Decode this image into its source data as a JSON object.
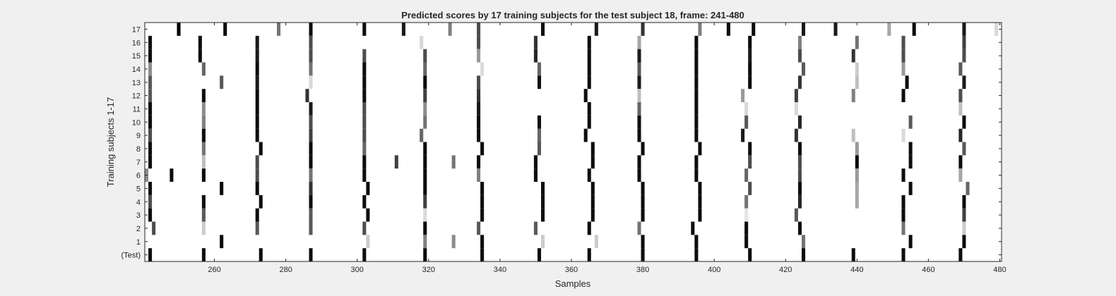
{
  "chart_data": {
    "type": "heatmap",
    "title": "Predicted scores by 17 training subjects for the test subject 18, frame: 241-480",
    "xlabel": "Samples",
    "ylabel": "Training subjects 1-17",
    "xlim": [
      240.5,
      480.5
    ],
    "xticks": [
      260,
      280,
      300,
      320,
      340,
      360,
      380,
      400,
      420,
      440,
      460,
      480
    ],
    "rows": [
      "17",
      "16",
      "15",
      "14",
      "13",
      "12",
      "11",
      "10",
      "9",
      "8",
      "7",
      "6",
      "5",
      "4",
      "3",
      "2",
      "1",
      "(Test)"
    ],
    "colormap": "gray (1 = white, 0 = black)",
    "background_value": 1,
    "cells": [
      {
        "row": "17",
        "marks": [
          [
            250,
            0
          ],
          [
            263,
            0.05
          ],
          [
            278,
            0.45
          ],
          [
            287,
            0.05
          ],
          [
            302,
            0.05
          ],
          [
            313,
            0.1
          ],
          [
            326,
            0.5
          ],
          [
            334,
            0.3
          ],
          [
            352,
            0.05
          ],
          [
            367,
            0.1
          ],
          [
            380,
            0.2
          ],
          [
            396,
            0.5
          ],
          [
            404,
            0.05
          ],
          [
            411,
            0.05
          ],
          [
            425,
            0.1
          ],
          [
            434,
            0.1
          ],
          [
            449,
            0.65
          ],
          [
            456,
            0.05
          ],
          [
            470,
            0.1
          ],
          [
            479,
            0.85
          ]
        ]
      },
      {
        "row": "16",
        "marks": [
          [
            242,
            0.05
          ],
          [
            256,
            0.05
          ],
          [
            272,
            0.1
          ],
          [
            287,
            0.3
          ],
          [
            318,
            0.85
          ],
          [
            334,
            0.3
          ],
          [
            350,
            0.2
          ],
          [
            365,
            0.05
          ],
          [
            379,
            0.65
          ],
          [
            395,
            0.05
          ],
          [
            410,
            0.05
          ],
          [
            424,
            0.5
          ],
          [
            440,
            0.45
          ],
          [
            453,
            0.3
          ],
          [
            470,
            0.25
          ]
        ]
      },
      {
        "row": "15",
        "marks": [
          [
            242,
            0.05
          ],
          [
            256,
            0.05
          ],
          [
            272,
            0.1
          ],
          [
            287,
            0.3
          ],
          [
            302,
            0.3
          ],
          [
            319,
            0.3
          ],
          [
            334,
            0.6
          ],
          [
            350,
            0.15
          ],
          [
            365,
            0.05
          ],
          [
            379,
            0.1
          ],
          [
            395,
            0.05
          ],
          [
            410,
            0.1
          ],
          [
            424,
            0.3
          ],
          [
            439,
            0.2
          ],
          [
            453,
            0.3
          ],
          [
            470,
            0.3
          ]
        ]
      },
      {
        "row": "14",
        "marks": [
          [
            242,
            0.55
          ],
          [
            257,
            0.4
          ],
          [
            272,
            0.05
          ],
          [
            287,
            0.45
          ],
          [
            302,
            0.05
          ],
          [
            319,
            0.4
          ],
          [
            335,
            0.85
          ],
          [
            351,
            0.4
          ],
          [
            365,
            0.05
          ],
          [
            379,
            0.35
          ],
          [
            395,
            0.05
          ],
          [
            410,
            0.05
          ],
          [
            425,
            0.35
          ],
          [
            440,
            0.8
          ],
          [
            453,
            0.6
          ],
          [
            469,
            0.35
          ]
        ]
      },
      {
        "row": "13",
        "marks": [
          [
            242,
            0.35
          ],
          [
            262,
            0.35
          ],
          [
            272,
            0.1
          ],
          [
            287,
            0.85
          ],
          [
            302,
            0.05
          ],
          [
            319,
            0.05
          ],
          [
            334,
            0.3
          ],
          [
            351,
            0.05
          ],
          [
            365,
            0.05
          ],
          [
            379,
            0.1
          ],
          [
            395,
            0.05
          ],
          [
            410,
            0.05
          ],
          [
            424,
            0.2
          ],
          [
            440,
            0.75
          ],
          [
            454,
            0.05
          ],
          [
            470,
            0.1
          ]
        ]
      },
      {
        "row": "12",
        "marks": [
          [
            242,
            0.35
          ],
          [
            257,
            0.05
          ],
          [
            272,
            0.05
          ],
          [
            286,
            0.2
          ],
          [
            302,
            0.05
          ],
          [
            319,
            0.25
          ],
          [
            334,
            0.2
          ],
          [
            364,
            0.05
          ],
          [
            379,
            0.75
          ],
          [
            395,
            0.05
          ],
          [
            408,
            0.6
          ],
          [
            423,
            0.25
          ],
          [
            439,
            0.5
          ],
          [
            453,
            0.05
          ],
          [
            469,
            0.3
          ]
        ]
      },
      {
        "row": "11",
        "marks": [
          [
            242,
            0.05
          ],
          [
            257,
            0.55
          ],
          [
            272,
            0.05
          ],
          [
            287,
            0.1
          ],
          [
            302,
            0.3
          ],
          [
            319,
            0.55
          ],
          [
            334,
            0.1
          ],
          [
            365,
            0.05
          ],
          [
            379,
            0.4
          ],
          [
            395,
            0.05
          ],
          [
            409,
            0.85
          ],
          [
            423,
            0.85
          ],
          [
            469,
            0.75
          ]
        ]
      },
      {
        "row": "10",
        "marks": [
          [
            242,
            0.05
          ],
          [
            257,
            0.5
          ],
          [
            272,
            0.05
          ],
          [
            287,
            0.3
          ],
          [
            302,
            0.3
          ],
          [
            319,
            0.45
          ],
          [
            334,
            0.05
          ],
          [
            351,
            0.05
          ],
          [
            365,
            0.05
          ],
          [
            379,
            0.05
          ],
          [
            395,
            0.05
          ],
          [
            409,
            0.35
          ],
          [
            424,
            0.15
          ],
          [
            455,
            0.35
          ],
          [
            470,
            0.05
          ]
        ]
      },
      {
        "row": "9",
        "marks": [
          [
            242,
            0.3
          ],
          [
            257,
            0.05
          ],
          [
            272,
            0.05
          ],
          [
            287,
            0.25
          ],
          [
            302,
            0.3
          ],
          [
            318,
            0.4
          ],
          [
            334,
            0.05
          ],
          [
            351,
            0.4
          ],
          [
            364,
            0.05
          ],
          [
            379,
            0.05
          ],
          [
            395,
            0.05
          ],
          [
            408,
            0.1
          ],
          [
            423,
            0.2
          ],
          [
            439,
            0.75
          ],
          [
            453,
            0.85
          ],
          [
            469,
            0.15
          ]
        ]
      },
      {
        "row": "8",
        "marks": [
          [
            242,
            0.05
          ],
          [
            257,
            0.45
          ],
          [
            273,
            0.05
          ],
          [
            287,
            0.05
          ],
          [
            302,
            0.4
          ],
          [
            319,
            0.05
          ],
          [
            335,
            0.05
          ],
          [
            351,
            0.35
          ],
          [
            366,
            0.05
          ],
          [
            380,
            0.05
          ],
          [
            396,
            0.05
          ],
          [
            410,
            0.05
          ],
          [
            424,
            0.05
          ],
          [
            440,
            0.6
          ],
          [
            455,
            0.05
          ],
          [
            470,
            0.35
          ]
        ]
      },
      {
        "row": "7",
        "marks": [
          [
            242,
            0.05
          ],
          [
            257,
            0.75
          ],
          [
            272,
            0.3
          ],
          [
            287,
            0.05
          ],
          [
            302,
            0.05
          ],
          [
            311,
            0.25
          ],
          [
            319,
            0.05
          ],
          [
            327,
            0.45
          ],
          [
            334,
            0.05
          ],
          [
            350,
            0.05
          ],
          [
            366,
            0.05
          ],
          [
            379,
            0.05
          ],
          [
            395,
            0.05
          ],
          [
            410,
            0.3
          ],
          [
            424,
            0.3
          ],
          [
            440,
            0.05
          ],
          [
            455,
            0.05
          ],
          [
            469,
            0.05
          ]
        ]
      },
      {
        "row": "6",
        "marks": [
          [
            241,
            0.55
          ],
          [
            248,
            0.05
          ],
          [
            257,
            0.05
          ],
          [
            272,
            0.3
          ],
          [
            287,
            0.45
          ],
          [
            302,
            0.05
          ],
          [
            319,
            0.05
          ],
          [
            334,
            0.5
          ],
          [
            350,
            0.05
          ],
          [
            365,
            0.05
          ],
          [
            379,
            0.05
          ],
          [
            395,
            0.05
          ],
          [
            409,
            0.4
          ],
          [
            424,
            0.3
          ],
          [
            440,
            0.6
          ],
          [
            453,
            0.05
          ],
          [
            469,
            0.65
          ]
        ]
      },
      {
        "row": "5",
        "marks": [
          [
            242,
            0.05
          ],
          [
            262,
            0.05
          ],
          [
            272,
            0.05
          ],
          [
            287,
            0.2
          ],
          [
            303,
            0.05
          ],
          [
            319,
            0.05
          ],
          [
            335,
            0.05
          ],
          [
            352,
            0.05
          ],
          [
            366,
            0.05
          ],
          [
            380,
            0.05
          ],
          [
            396,
            0.05
          ],
          [
            410,
            0.3
          ],
          [
            424,
            0.05
          ],
          [
            440,
            0.65
          ],
          [
            455,
            0.05
          ],
          [
            471,
            0.4
          ]
        ]
      },
      {
        "row": "4",
        "marks": [
          [
            242,
            0.3
          ],
          [
            257,
            0.05
          ],
          [
            273,
            0.05
          ],
          [
            287,
            0.05
          ],
          [
            302,
            0.05
          ],
          [
            319,
            0.25
          ],
          [
            335,
            0.05
          ],
          [
            352,
            0.05
          ],
          [
            366,
            0.05
          ],
          [
            380,
            0.05
          ],
          [
            396,
            0.05
          ],
          [
            409,
            0.45
          ],
          [
            424,
            0.15
          ],
          [
            440,
            0.65
          ],
          [
            453,
            0.05
          ],
          [
            470,
            0.05
          ]
        ]
      },
      {
        "row": "3",
        "marks": [
          [
            242,
            0.05
          ],
          [
            257,
            0.35
          ],
          [
            272,
            0.05
          ],
          [
            287,
            0.35
          ],
          [
            303,
            0.05
          ],
          [
            319,
            0.85
          ],
          [
            335,
            0.05
          ],
          [
            352,
            0.05
          ],
          [
            366,
            0.05
          ],
          [
            380,
            0.05
          ],
          [
            396,
            0.05
          ],
          [
            409,
            0.9
          ],
          [
            423,
            0.35
          ],
          [
            453,
            0.05
          ],
          [
            470,
            0.25
          ]
        ]
      },
      {
        "row": "2",
        "marks": [
          [
            243,
            0.3
          ],
          [
            257,
            0.8
          ],
          [
            272,
            0.35
          ],
          [
            287,
            0.35
          ],
          [
            302,
            0.3
          ],
          [
            319,
            0.05
          ],
          [
            334,
            0.35
          ],
          [
            350,
            0.35
          ],
          [
            365,
            0.05
          ],
          [
            379,
            0.45
          ],
          [
            394,
            0.05
          ],
          [
            409,
            0.05
          ],
          [
            424,
            0.05
          ],
          [
            453,
            0.45
          ],
          [
            470,
            0.8
          ]
        ]
      },
      {
        "row": "1",
        "marks": [
          [
            262,
            0.05
          ],
          [
            303,
            0.8
          ],
          [
            319,
            0.5
          ],
          [
            327,
            0.55
          ],
          [
            335,
            0.05
          ],
          [
            352,
            0.8
          ],
          [
            367,
            0.8
          ],
          [
            380,
            0.05
          ],
          [
            395,
            0.05
          ],
          [
            409,
            0.05
          ],
          [
            425,
            0.45
          ],
          [
            455,
            0.05
          ],
          [
            470,
            0.05
          ]
        ]
      },
      {
        "row": "(Test)",
        "marks": [
          [
            242,
            0.05
          ],
          [
            257,
            0.05
          ],
          [
            273,
            0.05
          ],
          [
            287,
            0.05
          ],
          [
            302,
            0.05
          ],
          [
            319,
            0.05
          ],
          [
            335,
            0.05
          ],
          [
            351,
            0.05
          ],
          [
            365,
            0.05
          ],
          [
            380,
            0.05
          ],
          [
            395,
            0.05
          ],
          [
            410,
            0.05
          ],
          [
            425,
            0.05
          ],
          [
            439,
            0.05
          ],
          [
            453,
            0.05
          ],
          [
            469,
            0.05
          ]
        ]
      }
    ]
  }
}
